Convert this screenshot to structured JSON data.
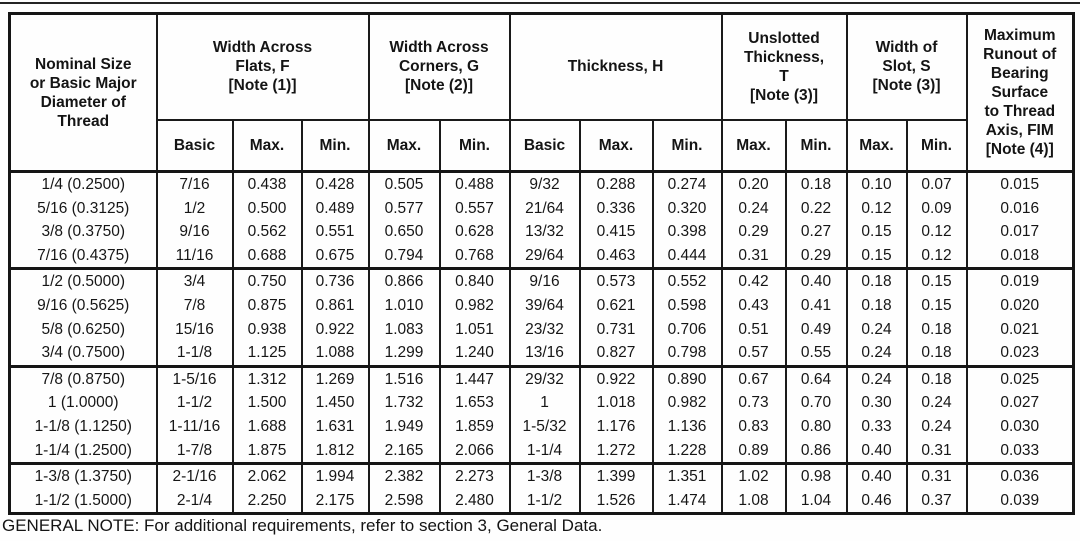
{
  "page": {
    "general_note": "GENERAL NOTE: For additional requirements, refer to section 3, General Data."
  },
  "table": {
    "header": {
      "nominal": "Nominal Size\nor Basic Major\nDiameter of\nThread",
      "groups": [
        {
          "label": "Width Across\nFlats, F\n[Note (1)]",
          "subs": [
            "Basic",
            "Max.",
            "Min."
          ]
        },
        {
          "label": "Width Across\nCorners, G\n[Note (2)]",
          "subs": [
            "Max.",
            "Min."
          ]
        },
        {
          "label": "Thickness, H",
          "subs": [
            "Basic",
            "Max.",
            "Min."
          ]
        },
        {
          "label": "Unslotted\nThickness,\nT\n[Note (3)]",
          "subs": [
            "Max.",
            "Min."
          ]
        },
        {
          "label": "Width of\nSlot, S\n[Note (3)]",
          "subs": [
            "Max.",
            "Min."
          ]
        }
      ],
      "runout": "Maximum\nRunout of\nBearing\nSurface\nto Thread\nAxis, FIM\n[Note (4)]"
    },
    "row_groups": [
      {
        "rows": [
          [
            "1/4 (0.2500)",
            "7/16",
            "0.438",
            "0.428",
            "0.505",
            "0.488",
            "9/32",
            "0.288",
            "0.274",
            "0.20",
            "0.18",
            "0.10",
            "0.07",
            "0.015"
          ],
          [
            "5/16 (0.3125)",
            "1/2",
            "0.500",
            "0.489",
            "0.577",
            "0.557",
            "21/64",
            "0.336",
            "0.320",
            "0.24",
            "0.22",
            "0.12",
            "0.09",
            "0.016"
          ],
          [
            "3/8 (0.3750)",
            "9/16",
            "0.562",
            "0.551",
            "0.650",
            "0.628",
            "13/32",
            "0.415",
            "0.398",
            "0.29",
            "0.27",
            "0.15",
            "0.12",
            "0.017"
          ],
          [
            "7/16 (0.4375)",
            "11/16",
            "0.688",
            "0.675",
            "0.794",
            "0.768",
            "29/64",
            "0.463",
            "0.444",
            "0.31",
            "0.29",
            "0.15",
            "0.12",
            "0.018"
          ]
        ]
      },
      {
        "rows": [
          [
            "1/2 (0.5000)",
            "3/4",
            "0.750",
            "0.736",
            "0.866",
            "0.840",
            "9/16",
            "0.573",
            "0.552",
            "0.42",
            "0.40",
            "0.18",
            "0.15",
            "0.019"
          ],
          [
            "9/16 (0.5625)",
            "7/8",
            "0.875",
            "0.861",
            "1.010",
            "0.982",
            "39/64",
            "0.621",
            "0.598",
            "0.43",
            "0.41",
            "0.18",
            "0.15",
            "0.020"
          ],
          [
            "5/8 (0.6250)",
            "15/16",
            "0.938",
            "0.922",
            "1.083",
            "1.051",
            "23/32",
            "0.731",
            "0.706",
            "0.51",
            "0.49",
            "0.24",
            "0.18",
            "0.021"
          ],
          [
            "3/4 (0.7500)",
            "1-1/8",
            "1.125",
            "1.088",
            "1.299",
            "1.240",
            "13/16",
            "0.827",
            "0.798",
            "0.57",
            "0.55",
            "0.24",
            "0.18",
            "0.023"
          ]
        ]
      },
      {
        "rows": [
          [
            "7/8 (0.8750)",
            "1-5/16",
            "1.312",
            "1.269",
            "1.516",
            "1.447",
            "29/32",
            "0.922",
            "0.890",
            "0.67",
            "0.64",
            "0.24",
            "0.18",
            "0.025"
          ],
          [
            "1 (1.0000)",
            "1-1/2",
            "1.500",
            "1.450",
            "1.732",
            "1.653",
            "1",
            "1.018",
            "0.982",
            "0.73",
            "0.70",
            "0.30",
            "0.24",
            "0.027"
          ],
          [
            "1-1/8 (1.1250)",
            "1-11/16",
            "1.688",
            "1.631",
            "1.949",
            "1.859",
            "1-5/32",
            "1.176",
            "1.136",
            "0.83",
            "0.80",
            "0.33",
            "0.24",
            "0.030"
          ],
          [
            "1-1/4 (1.2500)",
            "1-7/8",
            "1.875",
            "1.812",
            "2.165",
            "2.066",
            "1-1/4",
            "1.272",
            "1.228",
            "0.89",
            "0.86",
            "0.40",
            "0.31",
            "0.033"
          ]
        ]
      },
      {
        "rows": [
          [
            "1-3/8 (1.3750)",
            "2-1/16",
            "2.062",
            "1.994",
            "2.382",
            "2.273",
            "1-3/8",
            "1.399",
            "1.351",
            "1.02",
            "0.98",
            "0.40",
            "0.31",
            "0.036"
          ],
          [
            "1-1/2 (1.5000)",
            "2-1/4",
            "2.250",
            "2.175",
            "2.598",
            "2.480",
            "1-1/2",
            "1.526",
            "1.474",
            "1.08",
            "1.04",
            "0.46",
            "0.37",
            "0.039"
          ]
        ]
      }
    ]
  }
}
